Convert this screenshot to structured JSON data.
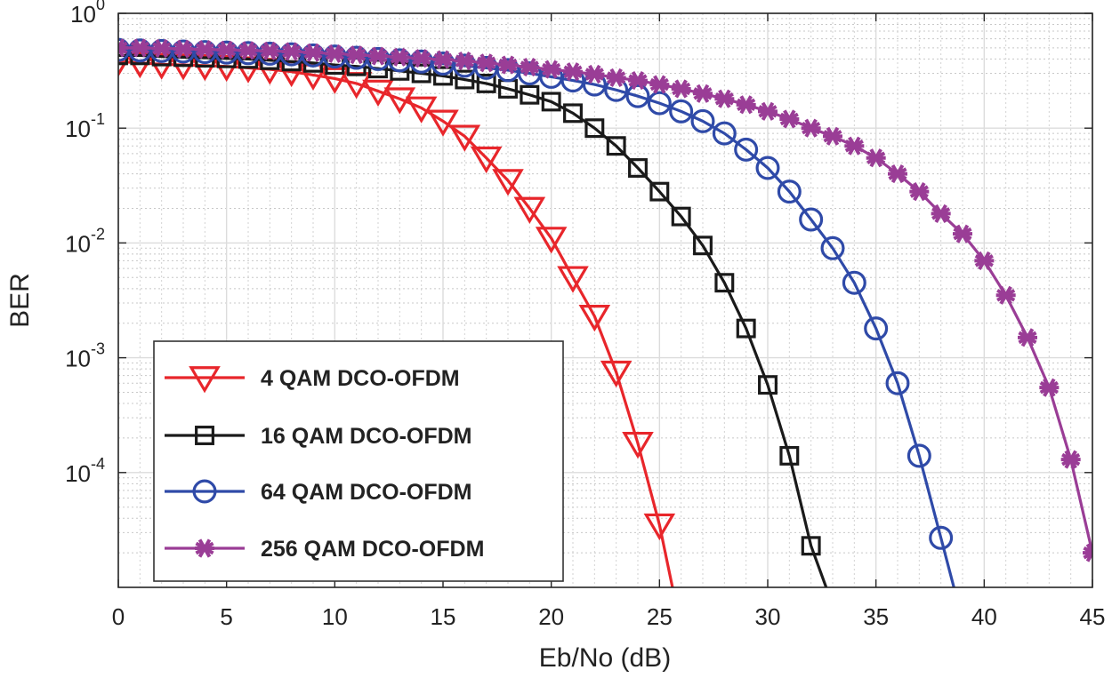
{
  "chart_data": {
    "type": "line",
    "title": "",
    "xlabel": "Eb/No (dB)",
    "ylabel": "BER",
    "xlim": [
      0,
      45
    ],
    "ylim": [
      1e-05,
      1
    ],
    "yscale": "log",
    "grid": true,
    "minor_grid": true,
    "x_ticks": [
      {
        "value": 0,
        "label": "0"
      },
      {
        "value": 5,
        "label": "5"
      },
      {
        "value": 10,
        "label": "10"
      },
      {
        "value": 15,
        "label": "15"
      },
      {
        "value": 20,
        "label": "20"
      },
      {
        "value": 25,
        "label": "25"
      },
      {
        "value": 30,
        "label": "30"
      },
      {
        "value": 35,
        "label": "35"
      },
      {
        "value": 40,
        "label": "40"
      },
      {
        "value": 45,
        "label": "45"
      }
    ],
    "y_ticks": [
      {
        "value": 1,
        "base": "10",
        "exp": "0"
      },
      {
        "value": 0.1,
        "base": "10",
        "exp": "-1"
      },
      {
        "value": 0.01,
        "base": "10",
        "exp": "-2"
      },
      {
        "value": 0.001,
        "base": "10",
        "exp": "-3"
      },
      {
        "value": 0.0001,
        "base": "10",
        "exp": "-4"
      }
    ],
    "legend_position": "bottom-left",
    "series": [
      {
        "name": "4 QAM DCO-OFDM",
        "color": "#e8262b",
        "marker": "triangle-down",
        "x": [
          0,
          1,
          2,
          3,
          4,
          5,
          6,
          7,
          8,
          9,
          10,
          11,
          12,
          13,
          14,
          15,
          16,
          17,
          18,
          19,
          20,
          21,
          22,
          23,
          24,
          25,
          25.6
        ],
        "y": [
          0.38,
          0.37,
          0.36,
          0.355,
          0.35,
          0.345,
          0.335,
          0.325,
          0.31,
          0.29,
          0.27,
          0.245,
          0.21,
          0.18,
          0.15,
          0.115,
          0.085,
          0.055,
          0.035,
          0.02,
          0.011,
          0.005,
          0.0023,
          0.00075,
          0.00018,
          3.5e-05,
          1e-05
        ]
      },
      {
        "name": "16 QAM DCO-OFDM",
        "color": "#1a1a1a",
        "marker": "square",
        "x": [
          0,
          1,
          2,
          3,
          4,
          5,
          6,
          7,
          8,
          9,
          10,
          11,
          12,
          13,
          14,
          15,
          16,
          17,
          18,
          19,
          20,
          21,
          22,
          23,
          24,
          25,
          26,
          27,
          28,
          29,
          30,
          31,
          32,
          32.7
        ],
        "y": [
          0.43,
          0.43,
          0.42,
          0.415,
          0.41,
          0.405,
          0.4,
          0.39,
          0.38,
          0.37,
          0.355,
          0.345,
          0.33,
          0.315,
          0.3,
          0.285,
          0.265,
          0.245,
          0.22,
          0.195,
          0.17,
          0.135,
          0.1,
          0.07,
          0.045,
          0.028,
          0.017,
          0.0095,
          0.0045,
          0.0018,
          0.00058,
          0.00014,
          2.3e-05,
          1e-05
        ]
      },
      {
        "name": "64 QAM DCO-OFDM",
        "color": "#2f4aa8",
        "marker": "circle",
        "x": [
          0,
          1,
          2,
          3,
          4,
          5,
          6,
          7,
          8,
          9,
          10,
          11,
          12,
          13,
          14,
          15,
          16,
          17,
          18,
          19,
          20,
          21,
          22,
          23,
          24,
          25,
          26,
          27,
          28,
          29,
          30,
          31,
          32,
          33,
          34,
          35,
          36,
          37,
          38,
          38.6
        ],
        "y": [
          0.48,
          0.475,
          0.47,
          0.465,
          0.46,
          0.455,
          0.45,
          0.445,
          0.44,
          0.43,
          0.42,
          0.41,
          0.4,
          0.39,
          0.38,
          0.365,
          0.35,
          0.335,
          0.32,
          0.3,
          0.28,
          0.26,
          0.24,
          0.215,
          0.19,
          0.165,
          0.14,
          0.115,
          0.09,
          0.065,
          0.045,
          0.028,
          0.016,
          0.009,
          0.0045,
          0.0018,
          0.0006,
          0.00014,
          2.7e-05,
          1e-05
        ]
      },
      {
        "name": "256 QAM DCO-OFDM",
        "color": "#9a3d96",
        "marker": "asterisk",
        "x": [
          0,
          1,
          2,
          3,
          4,
          5,
          6,
          7,
          8,
          9,
          10,
          11,
          12,
          13,
          14,
          15,
          16,
          17,
          18,
          19,
          20,
          21,
          22,
          23,
          24,
          25,
          26,
          27,
          28,
          29,
          30,
          31,
          32,
          33,
          34,
          35,
          36,
          37,
          38,
          39,
          40,
          41,
          42,
          43,
          44,
          45
        ],
        "y": [
          0.5,
          0.5,
          0.495,
          0.49,
          0.485,
          0.48,
          0.475,
          0.47,
          0.465,
          0.455,
          0.445,
          0.435,
          0.425,
          0.415,
          0.405,
          0.395,
          0.385,
          0.37,
          0.355,
          0.34,
          0.325,
          0.31,
          0.295,
          0.275,
          0.26,
          0.24,
          0.22,
          0.2,
          0.18,
          0.16,
          0.14,
          0.12,
          0.1,
          0.085,
          0.07,
          0.055,
          0.04,
          0.028,
          0.018,
          0.012,
          0.007,
          0.0035,
          0.0015,
          0.00055,
          0.00013,
          2e-05
        ]
      }
    ]
  }
}
